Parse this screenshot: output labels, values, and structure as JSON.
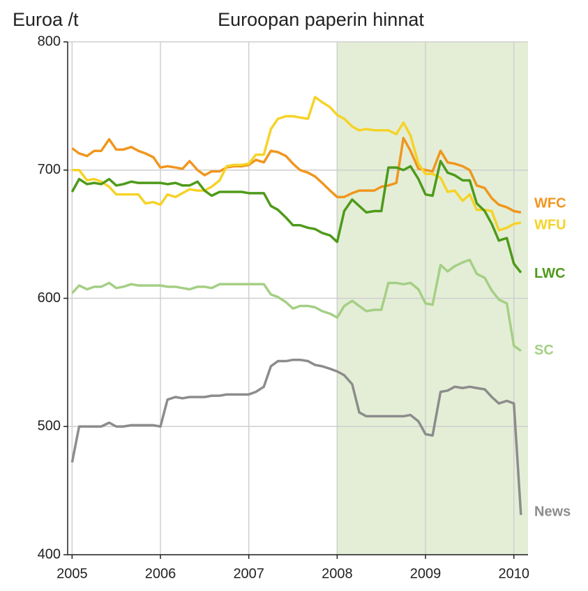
{
  "chart_data": {
    "type": "line",
    "title": "Euroopan paperin hinnat",
    "y_label": "Euroa /t",
    "x": [
      2005,
      2005.08,
      2005.17,
      2005.25,
      2005.33,
      2005.42,
      2005.5,
      2005.58,
      2005.67,
      2005.75,
      2005.83,
      2005.92,
      2006,
      2006.08,
      2006.17,
      2006.25,
      2006.33,
      2006.42,
      2006.5,
      2006.58,
      2006.67,
      2006.75,
      2006.83,
      2006.92,
      2007,
      2007.08,
      2007.17,
      2007.25,
      2007.33,
      2007.42,
      2007.5,
      2007.58,
      2007.67,
      2007.75,
      2007.83,
      2007.92,
      2008,
      2008.08,
      2008.17,
      2008.25,
      2008.33,
      2008.42,
      2008.5,
      2008.58,
      2008.67,
      2008.75,
      2008.83,
      2008.92,
      2009,
      2009.08,
      2009.17,
      2009.25,
      2009.33,
      2009.42,
      2009.5,
      2009.58,
      2009.67,
      2009.75,
      2009.83,
      2009.92,
      2010,
      2010.08
    ],
    "series": [
      {
        "name": "WFC",
        "color": "#f0961e",
        "values": [
          717,
          713,
          711,
          715,
          715,
          724,
          716,
          716,
          718,
          715,
          713,
          710,
          702,
          703,
          702,
          701,
          707,
          700,
          696,
          699,
          699,
          702,
          703,
          703,
          704,
          708,
          706,
          715,
          714,
          711,
          705,
          700,
          698,
          695,
          690,
          684,
          679,
          679,
          682,
          684,
          684,
          684,
          687,
          688,
          690,
          725,
          715,
          701,
          700,
          699,
          715,
          706,
          705,
          703,
          700,
          688,
          686,
          678,
          673,
          671,
          668,
          667
        ]
      },
      {
        "name": "WFU",
        "color": "#f5d327",
        "values": [
          700,
          700,
          692,
          693,
          691,
          687,
          681,
          681,
          681,
          681,
          674,
          675,
          673,
          681,
          679,
          682,
          685,
          684,
          684,
          687,
          692,
          703,
          704,
          704,
          705,
          712,
          712,
          732,
          740,
          742,
          742,
          741,
          740,
          757,
          753,
          749,
          743,
          740,
          734,
          731,
          732,
          731,
          731,
          731,
          728,
          737,
          727,
          705,
          697,
          697,
          694,
          683,
          684,
          676,
          681,
          669,
          669,
          668,
          653,
          655,
          658,
          659
        ]
      },
      {
        "name": "LWC",
        "color": "#4e9a1a",
        "values": [
          683,
          693,
          689,
          690,
          689,
          693,
          688,
          689,
          691,
          690,
          690,
          690,
          690,
          689,
          690,
          688,
          688,
          691,
          684,
          680,
          683,
          683,
          683,
          683,
          682,
          682,
          682,
          672,
          669,
          663,
          657,
          657,
          655,
          654,
          651,
          649,
          644,
          668,
          677,
          672,
          667,
          668,
          668,
          702,
          702,
          700,
          703,
          693,
          681,
          680,
          707,
          698,
          696,
          692,
          692,
          674,
          668,
          658,
          645,
          647,
          627,
          620
        ]
      },
      {
        "name": "SC",
        "color": "#a5cf85",
        "values": [
          604,
          610,
          607,
          609,
          609,
          612,
          608,
          609,
          611,
          610,
          610,
          610,
          610,
          609,
          609,
          608,
          607,
          609,
          609,
          608,
          611,
          611,
          611,
          611,
          611,
          611,
          611,
          603,
          601,
          597,
          592,
          594,
          594,
          593,
          590,
          588,
          585,
          594,
          598,
          594,
          590,
          591,
          591,
          612,
          612,
          611,
          612,
          607,
          596,
          595,
          626,
          621,
          625,
          628,
          630,
          619,
          616,
          606,
          599,
          596,
          563,
          559
        ]
      },
      {
        "name": "News",
        "color": "#8c8c8c",
        "values": [
          472,
          500,
          500,
          500,
          500,
          503,
          500,
          500,
          501,
          501,
          501,
          501,
          500,
          521,
          523,
          522,
          523,
          523,
          523,
          524,
          524,
          525,
          525,
          525,
          525,
          527,
          531,
          547,
          551,
          551,
          552,
          552,
          551,
          548,
          547,
          545,
          543,
          540,
          533,
          511,
          508,
          508,
          508,
          508,
          508,
          508,
          509,
          504,
          494,
          493,
          527,
          528,
          531,
          530,
          531,
          530,
          529,
          523,
          518,
          520,
          518,
          431
        ]
      }
    ],
    "xlim": [
      2004.95,
      2010.16
    ],
    "xticks": [
      2005,
      2006,
      2007,
      2008,
      2009,
      2010
    ],
    "ylim": [
      400,
      800
    ],
    "yticks": [
      400,
      500,
      600,
      700,
      800
    ],
    "grid": true,
    "shade_start": 2008,
    "shade_color": "#e4eed6"
  }
}
